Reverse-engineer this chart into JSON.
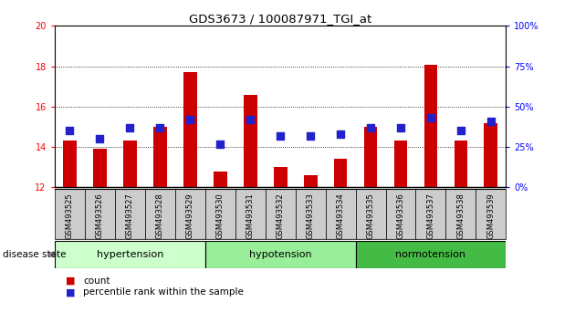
{
  "title": "GDS3673 / 100087971_TGI_at",
  "samples": [
    "GSM493525",
    "GSM493526",
    "GSM493527",
    "GSM493528",
    "GSM493529",
    "GSM493530",
    "GSM493531",
    "GSM493532",
    "GSM493533",
    "GSM493534",
    "GSM493535",
    "GSM493536",
    "GSM493537",
    "GSM493538",
    "GSM493539"
  ],
  "bar_values": [
    14.3,
    13.9,
    14.3,
    15.0,
    17.7,
    12.8,
    16.6,
    13.0,
    12.6,
    13.4,
    15.0,
    14.3,
    18.05,
    14.3,
    15.2
  ],
  "percentile_values": [
    35,
    30,
    37,
    37,
    42,
    27,
    42,
    32,
    32,
    33,
    37,
    37,
    43,
    35,
    41
  ],
  "ymin": 12,
  "ymax": 20,
  "y2min": 0,
  "y2max": 100,
  "yticks": [
    12,
    14,
    16,
    18,
    20
  ],
  "y2ticks": [
    0,
    25,
    50,
    75,
    100
  ],
  "bar_color": "#cc0000",
  "dot_color": "#2222cc",
  "groups": [
    {
      "label": "hypertension",
      "start": 0,
      "end": 5,
      "color": "#ccffcc"
    },
    {
      "label": "hypotension",
      "start": 5,
      "end": 10,
      "color": "#99ee99"
    },
    {
      "label": "normotension",
      "start": 10,
      "end": 15,
      "color": "#44bb44"
    }
  ],
  "disease_state_label": "disease state",
  "legend_count_label": "count",
  "legend_percentile_label": "percentile rank within the sample",
  "bar_width": 0.45,
  "dot_size": 28,
  "tick_bg_color": "#cccccc",
  "bg_color": "#ffffff"
}
